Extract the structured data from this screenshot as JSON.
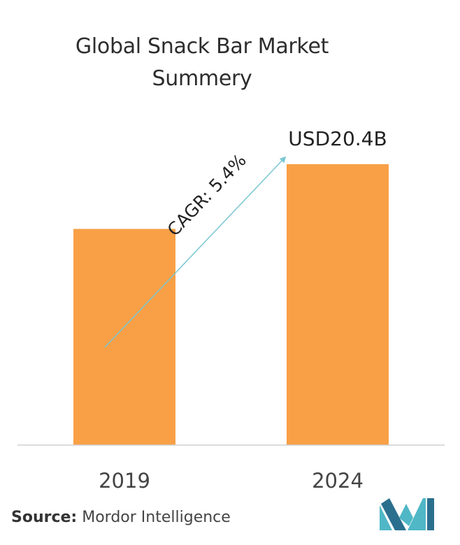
{
  "title_lines": [
    "Global Snack Bar Market",
    "Summery"
  ],
  "source": {
    "label": "Source:",
    "name": "Mordor Intelligence"
  },
  "brand_colors": {
    "bar": "#f9a046",
    "arrow": "#79c7d2",
    "logo_light": "#4fb7c6",
    "logo_dark": "#2b6f8f"
  },
  "chart_data": {
    "type": "bar",
    "categories": [
      "2019",
      "2024"
    ],
    "values": [
      15.7,
      20.4
    ],
    "value_label": {
      "category": "2024",
      "text": "USD20.4B"
    },
    "annotation": {
      "text": "CAGR: 5.4%",
      "from": "2019",
      "to": "2024"
    },
    "ylim": [
      0,
      20.4
    ],
    "title": "Global Snack Bar Market Summery",
    "xlabel": "",
    "ylabel": "",
    "grid": false,
    "legend": "none"
  }
}
